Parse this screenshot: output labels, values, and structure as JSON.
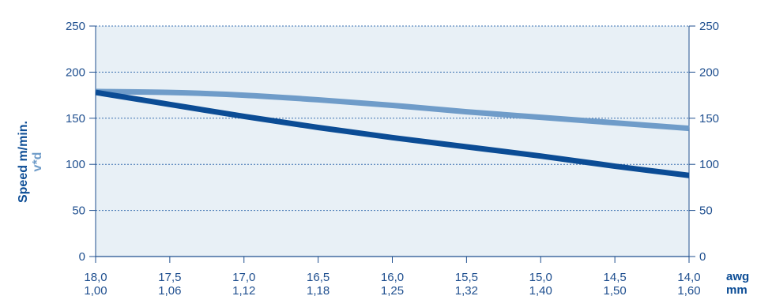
{
  "chart_data": {
    "type": "line",
    "ylabel": "Speed m/min.",
    "ylabel_secondary": "v*d",
    "x_units": [
      "awg",
      "mm"
    ],
    "x_ticks_awg": [
      "18,0",
      "17,5",
      "17,0",
      "16,5",
      "16,0",
      "15,5",
      "15,0",
      "14,5",
      "14,0"
    ],
    "x_ticks_mm": [
      "1,00",
      "1,06",
      "1,12",
      "1,18",
      "1,25",
      "1,32",
      "1,40",
      "1,50",
      "1,60"
    ],
    "y_ticks": [
      "0",
      "50",
      "100",
      "150",
      "200",
      "250"
    ],
    "ylim": [
      0,
      250
    ],
    "grid": "horizontal dotted",
    "background": "#e8f0f6",
    "series": [
      {
        "color": "#0b4c95",
        "x": [
          "18,0",
          "17,5",
          "17,0",
          "16,5",
          "16,0",
          "15,5",
          "15,0",
          "14,5",
          "14,0"
        ],
        "values": [
          178,
          165,
          152,
          140,
          129,
          119,
          109,
          98,
          88
        ]
      },
      {
        "color": "#6f9cc9",
        "x": [
          "18,0",
          "17,5",
          "17,0",
          "16,5",
          "16,0",
          "15,5",
          "15,0",
          "14,5",
          "14,0"
        ],
        "values": [
          179,
          178,
          175,
          170,
          164,
          157,
          151,
          145,
          139
        ]
      }
    ]
  }
}
